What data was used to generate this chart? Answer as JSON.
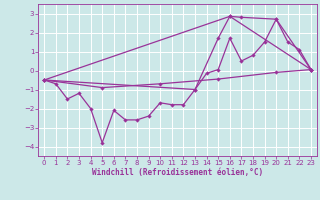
{
  "xlabel": "Windchill (Refroidissement éolien,°C)",
  "bg_color": "#cce8e8",
  "grid_color": "#ffffff",
  "line_color": "#993399",
  "spine_color": "#993399",
  "xlim": [
    -0.5,
    23.5
  ],
  "ylim": [
    -4.5,
    3.5
  ],
  "xticks": [
    0,
    1,
    2,
    3,
    4,
    5,
    6,
    7,
    8,
    9,
    10,
    11,
    12,
    13,
    14,
    15,
    16,
    17,
    18,
    19,
    20,
    21,
    22,
    23
  ],
  "yticks": [
    -4,
    -3,
    -2,
    -1,
    0,
    1,
    2,
    3
  ],
  "series1": [
    [
      0,
      -0.5
    ],
    [
      1,
      -0.7
    ],
    [
      2,
      -1.5
    ],
    [
      3,
      -1.2
    ],
    [
      4,
      -2.0
    ],
    [
      5,
      -3.8
    ],
    [
      6,
      -2.1
    ],
    [
      7,
      -2.6
    ],
    [
      8,
      -2.6
    ],
    [
      9,
      -2.4
    ],
    [
      10,
      -1.7
    ],
    [
      11,
      -1.8
    ],
    [
      12,
      -1.8
    ],
    [
      13,
      -1.0
    ],
    [
      14,
      -0.15
    ],
    [
      15,
      0.05
    ],
    [
      16,
      1.7
    ],
    [
      17,
      0.5
    ],
    [
      18,
      0.8
    ],
    [
      19,
      1.5
    ],
    [
      20,
      2.7
    ],
    [
      21,
      1.5
    ],
    [
      22,
      1.1
    ],
    [
      23,
      0.05
    ]
  ],
  "series2": [
    [
      0,
      -0.5
    ],
    [
      13,
      -1.0
    ],
    [
      15,
      1.7
    ],
    [
      16,
      2.85
    ],
    [
      17,
      2.8
    ],
    [
      20,
      2.7
    ],
    [
      23,
      0.05
    ]
  ],
  "series3": [
    [
      0,
      -0.5
    ],
    [
      16,
      2.85
    ],
    [
      23,
      0.05
    ]
  ],
  "series4": [
    [
      0,
      -0.5
    ],
    [
      5,
      -0.9
    ],
    [
      10,
      -0.7
    ],
    [
      15,
      -0.45
    ],
    [
      20,
      -0.1
    ],
    [
      23,
      0.05
    ]
  ]
}
